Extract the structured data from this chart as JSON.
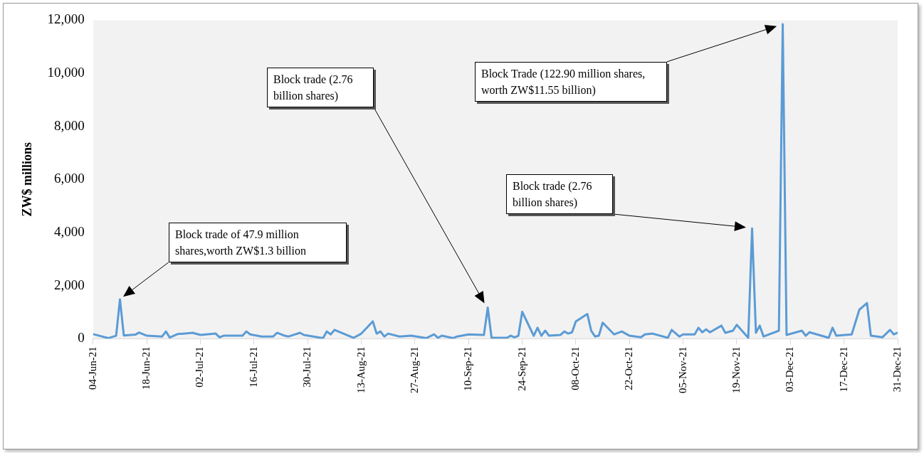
{
  "chart_data": {
    "type": "line",
    "ylabel": "ZW$ millions",
    "x": [
      "--06-04",
      "--06-08",
      "--06-10",
      "--06-11",
      "--06-12",
      "--06-15",
      "--06-16",
      "--06-18",
      "--06-22",
      "--06-23",
      "--06-24",
      "--06-26",
      "--06-30",
      "--07-02",
      "--07-06",
      "--07-07",
      "--07-08",
      "--07-13",
      "--07-14",
      "--07-15",
      "--07-18",
      "--07-21",
      "--07-22",
      "--07-24",
      "--07-25",
      "--07-28",
      "--07-29",
      "--08-03",
      "--08-04",
      "--08-05",
      "--08-06",
      "--08-11",
      "--08-13",
      "--08-16",
      "--08-17",
      "--08-18",
      "--08-19",
      "--08-20",
      "--08-23",
      "--08-26",
      "--08-30",
      "--09-01",
      "--09-02",
      "--09-03",
      "--09-06",
      "--09-07",
      "--09-10",
      "--09-14",
      "--09-15",
      "--09-16",
      "--09-20",
      "--09-21",
      "--09-22",
      "--09-23",
      "--09-24",
      "--09-27",
      "--09-28",
      "--09-29",
      "--09-30",
      "--10-01",
      "--10-04",
      "--10-05",
      "--10-06",
      "--10-07",
      "--10-08",
      "--10-11",
      "--10-12",
      "--10-13",
      "--10-14",
      "--10-15",
      "--10-18",
      "--10-20",
      "--10-22",
      "--10-25",
      "--10-26",
      "--10-28",
      "--11-01",
      "--11-02",
      "--11-04",
      "--11-05",
      "--11-08",
      "--11-09",
      "--11-10",
      "--11-11",
      "--11-12",
      "--11-15",
      "--11-16",
      "--11-18",
      "--11-19",
      "--11-22",
      "--11-23",
      "--11-24",
      "--11-25",
      "--11-26",
      "--11-30",
      "--12-01",
      "--12-02",
      "--12-06",
      "--12-07",
      "--12-08",
      "--12-13",
      "--12-14",
      "--12-15",
      "--12-19",
      "--12-21",
      "--12-23",
      "--12-24",
      "--12-27",
      "--12-29",
      "--12-30",
      "--12-31"
    ],
    "series": [
      {
        "color": "#5b9bd5",
        "values": [
          170,
          20,
          110,
          1480,
          120,
          150,
          230,
          110,
          80,
          270,
          40,
          170,
          220,
          140,
          190,
          50,
          110,
          110,
          270,
          160,
          80,
          80,
          220,
          110,
          80,
          220,
          140,
          20,
          270,
          160,
          330,
          30,
          190,
          650,
          190,
          270,
          80,
          190,
          80,
          110,
          20,
          160,
          30,
          110,
          20,
          80,
          160,
          140,
          1170,
          30,
          30,
          110,
          50,
          110,
          1010,
          110,
          410,
          110,
          300,
          110,
          140,
          270,
          190,
          240,
          650,
          930,
          300,
          80,
          110,
          600,
          160,
          270,
          110,
          50,
          160,
          190,
          30,
          330,
          80,
          160,
          160,
          410,
          240,
          350,
          240,
          490,
          220,
          300,
          520,
          30,
          4150,
          220,
          490,
          80,
          300,
          11850,
          140,
          300,
          110,
          240,
          30,
          410,
          110,
          160,
          1090,
          1340,
          110,
          50,
          330,
          160,
          220
        ]
      }
    ],
    "xlim": [
      "--06-04",
      "--12-31"
    ],
    "xticks": [
      {
        "value": "--06-04",
        "label": "04-Jun-21"
      },
      {
        "value": "--06-18",
        "label": "18-Jun-21"
      },
      {
        "value": "--07-02",
        "label": "02-Jul-21"
      },
      {
        "value": "--07-16",
        "label": "16-Jul-21"
      },
      {
        "value": "--07-30",
        "label": "30-Jul-21"
      },
      {
        "value": "--08-13",
        "label": "13-Aug-21"
      },
      {
        "value": "--08-27",
        "label": "27-Aug-21"
      },
      {
        "value": "--09-10",
        "label": "10-Sep-21"
      },
      {
        "value": "--09-24",
        "label": "24-Sep-21"
      },
      {
        "value": "--10-08",
        "label": "08-Oct-21"
      },
      {
        "value": "--10-22",
        "label": "22-Oct-21"
      },
      {
        "value": "--11-05",
        "label": "05-Nov-21"
      },
      {
        "value": "--11-19",
        "label": "19-Nov-21"
      },
      {
        "value": "--12-03",
        "label": "03-Dec-21"
      },
      {
        "value": "--12-17",
        "label": "17-Dec-21"
      },
      {
        "value": "--12-31",
        "label": "31-Dec-21"
      }
    ],
    "ylim": [
      0,
      12000
    ],
    "yticks": [
      {
        "value": 0,
        "label": "0"
      },
      {
        "value": 2000,
        "label": "2,000"
      },
      {
        "value": 4000,
        "label": "4,000"
      },
      {
        "value": 6000,
        "label": "6,000"
      },
      {
        "value": 8000,
        "label": "8,000"
      },
      {
        "value": 10000,
        "label": "10,000"
      },
      {
        "value": 12000,
        "label": "12,000"
      }
    ],
    "annotations": [
      "Block trade of 47.9 million shares,worth ZW$1.3 billion",
      "Block trade (2.76 billion shares)",
      "Block Trade (122.90 million shares, worth ZW$11.55 billion)",
      "Block trade (2.76 billion shares)"
    ],
    "grid": false,
    "legend": false,
    "marker": "none",
    "line_style": "solid"
  }
}
